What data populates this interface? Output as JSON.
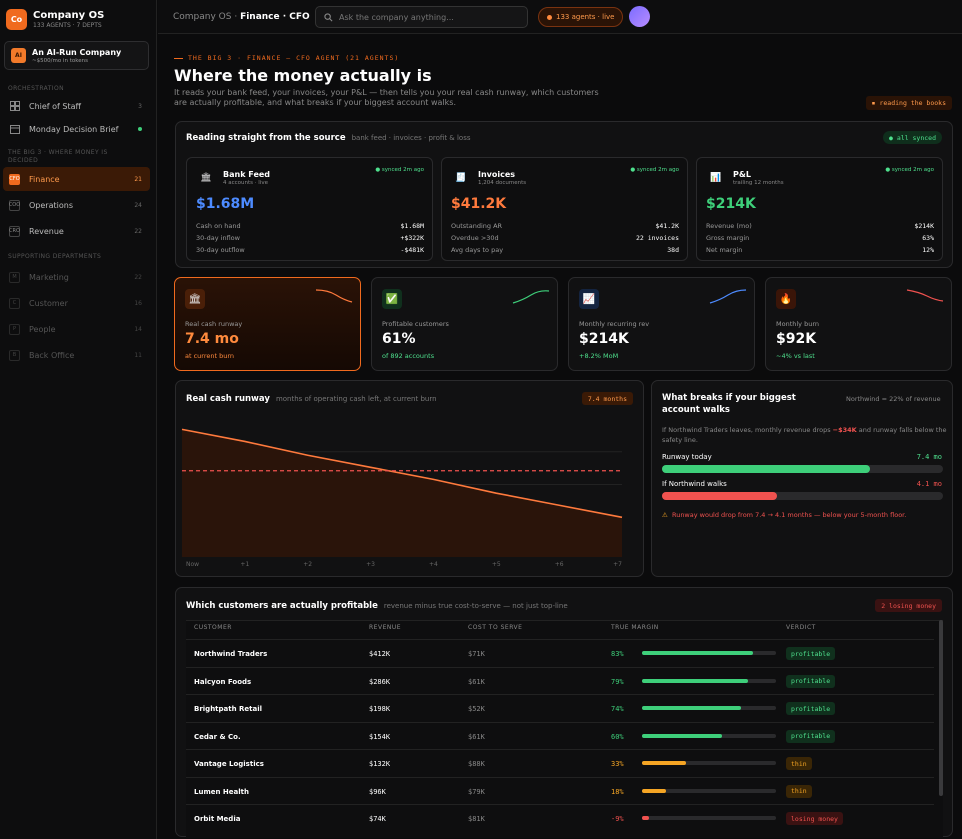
{
  "app": {
    "logo": "Co",
    "name": "Company OS",
    "meta": "133 AGENTS · 7 DEPTS"
  },
  "org": {
    "icon": "AI",
    "name": "An AI-Run Company",
    "cost": "~$500/mo in tokens"
  },
  "sidebar": {
    "orchestration_title": "ORCHESTRATION",
    "orchestration": [
      {
        "label": "Chief of Staff",
        "count": "3"
      },
      {
        "label": "Monday Decision Brief",
        "status": "live"
      }
    ],
    "big3_title": "THE BIG 3 · WHERE MONEY IS DECIDED",
    "big3": [
      {
        "icon": "CFO",
        "label": "Finance",
        "count": "21"
      },
      {
        "icon": "COO",
        "label": "Operations",
        "count": "24"
      },
      {
        "icon": "CRO",
        "label": "Revenue",
        "count": "22"
      }
    ],
    "support_title": "SUPPORTING DEPARTMENTS",
    "support": [
      {
        "icon": "M",
        "label": "Marketing",
        "count": "22"
      },
      {
        "icon": "C",
        "label": "Customer",
        "count": "16"
      },
      {
        "icon": "P",
        "label": "People",
        "count": "14"
      },
      {
        "icon": "B",
        "label": "Back Office",
        "count": "11"
      }
    ]
  },
  "topbar": {
    "crumb_prefix": "Company OS · ",
    "crumb_current": "Finance · CFO",
    "search_placeholder": "Ask the company anything...",
    "agents": "133 agents · live"
  },
  "header": {
    "eyebrow": "THE BIG 3 · FINANCE — CFO AGENT (21 AGENTS)",
    "title": "Where the money actually is",
    "subtitle": "It reads your bank feed, your invoices, your P&L — then tells you your real cash runway, which customers are actually profitable, and what breaks if your biggest account walks.",
    "badge": "reading the books"
  },
  "sources": {
    "title": "Reading straight from the source",
    "caption": "bank feed · invoices · profit & loss",
    "status": "all synced",
    "items": [
      {
        "icon": "🏛",
        "name": "Bank Feed",
        "desc": "4 accounts · live",
        "sync": "synced 2m ago",
        "big": "$1.68M",
        "color": "#4d8bff",
        "rows": [
          [
            "Cash on hand",
            "$1.68M"
          ],
          [
            "30-day inflow",
            "+$322K"
          ],
          [
            "30-day outflow",
            "-$481K"
          ]
        ]
      },
      {
        "icon": "🧾",
        "name": "Invoices",
        "desc": "1,204 documents",
        "sync": "synced 2m ago",
        "big": "$41.2K",
        "color": "#ff7a3d",
        "rows": [
          [
            "Outstanding AR",
            "$41.2K"
          ],
          [
            "Overdue >30d",
            "22 invoices"
          ],
          [
            "Avg days to pay",
            "38d"
          ]
        ]
      },
      {
        "icon": "📊",
        "name": "P&L",
        "desc": "trailing 12 months",
        "sync": "synced 2m ago",
        "big": "$214K",
        "color": "#3ecf7a",
        "rows": [
          [
            "Revenue (mo)",
            "$214K"
          ],
          [
            "Gross margin",
            "63%"
          ],
          [
            "Net margin",
            "12%"
          ]
        ]
      }
    ]
  },
  "kpis": [
    {
      "icon": "🏛",
      "label": "Real cash runway",
      "value": "7.4 mo",
      "delta": "at current burn",
      "color": "#ff8a3d",
      "trend": "down"
    },
    {
      "icon": "✅",
      "label": "Profitable customers",
      "value": "61%",
      "delta": "of 892 accounts",
      "color": "#4ee08d",
      "trend": "up"
    },
    {
      "icon": "📈",
      "label": "Monthly recurring rev",
      "value": "$214K",
      "delta": "+8.2% MoM",
      "color": "#4ee08d",
      "trend": "up"
    },
    {
      "icon": "🔥",
      "label": "Monthly burn",
      "value": "$92K",
      "delta": "~4% vs last",
      "color": "#4ee08d",
      "trend": "down"
    }
  ],
  "runway": {
    "title": "Real cash runway",
    "caption": "months of operating cash left, at current burn",
    "badge": "7.4 months"
  },
  "chart_data": {
    "type": "line",
    "title": "Real cash runway",
    "xlabel": "",
    "ylabel": "",
    "categories": [
      "Now",
      "+1",
      "+2",
      "+3",
      "+4",
      "+5",
      "+6",
      "+7"
    ],
    "series": [
      {
        "values": [
          7.4,
          6.7,
          5.9,
          5.2,
          4.5,
          3.7,
          3.0,
          2.3
        ]
      }
    ],
    "threshold": 5,
    "ylim": [
      0,
      8
    ],
    "grid": true
  },
  "risk": {
    "title": "What breaks if your biggest account walks",
    "note": "Northwind = 22% of revenue",
    "desc_pre": "If Northwind Traders leaves, monthly revenue drops ",
    "desc_hl": "−$34K",
    "desc_post": " and runway falls below the safety line.",
    "today_label": "Runway today",
    "today_value": "7.4 mo",
    "today_pct": 0.74,
    "walk_label": "If Northwind walks",
    "walk_value": "4.1 mo",
    "walk_pct": 0.41,
    "warning": "Runway would drop from 7.4 → 4.1 months — below your 5-month floor."
  },
  "profit": {
    "title": "Which customers are actually profitable",
    "caption": "revenue minus true cost-to-serve — not just top-line",
    "badge": "2 losing money",
    "headers": [
      "CUSTOMER",
      "REVENUE",
      "COST TO SERVE",
      "TRUE MARGIN",
      "VERDICT"
    ],
    "rows": [
      {
        "name": "Northwind Traders",
        "revenue": "$412K",
        "cost": "$71K",
        "margin": "83%",
        "pct": 83,
        "verdict": "profitable",
        "tone": "green"
      },
      {
        "name": "Halcyon Foods",
        "revenue": "$286K",
        "cost": "$61K",
        "margin": "79%",
        "pct": 79,
        "verdict": "profitable",
        "tone": "green"
      },
      {
        "name": "Brightpath Retail",
        "revenue": "$198K",
        "cost": "$52K",
        "margin": "74%",
        "pct": 74,
        "verdict": "profitable",
        "tone": "green"
      },
      {
        "name": "Cedar & Co.",
        "revenue": "$154K",
        "cost": "$61K",
        "margin": "60%",
        "pct": 60,
        "verdict": "profitable",
        "tone": "green"
      },
      {
        "name": "Vantage Logistics",
        "revenue": "$132K",
        "cost": "$88K",
        "margin": "33%",
        "pct": 33,
        "verdict": "thin",
        "tone": "amber"
      },
      {
        "name": "Lumen Health",
        "revenue": "$96K",
        "cost": "$79K",
        "margin": "18%",
        "pct": 18,
        "verdict": "thin",
        "tone": "amber"
      },
      {
        "name": "Orbit Media",
        "revenue": "$74K",
        "cost": "$81K",
        "margin": "-9%",
        "pct": 5,
        "verdict": "losing money",
        "tone": "red"
      }
    ]
  },
  "colors": {
    "accent": "#f06a1e",
    "green": "#3ecf7a",
    "amber": "#f5a524",
    "red": "#f0524f",
    "blue": "#4d8bff"
  }
}
